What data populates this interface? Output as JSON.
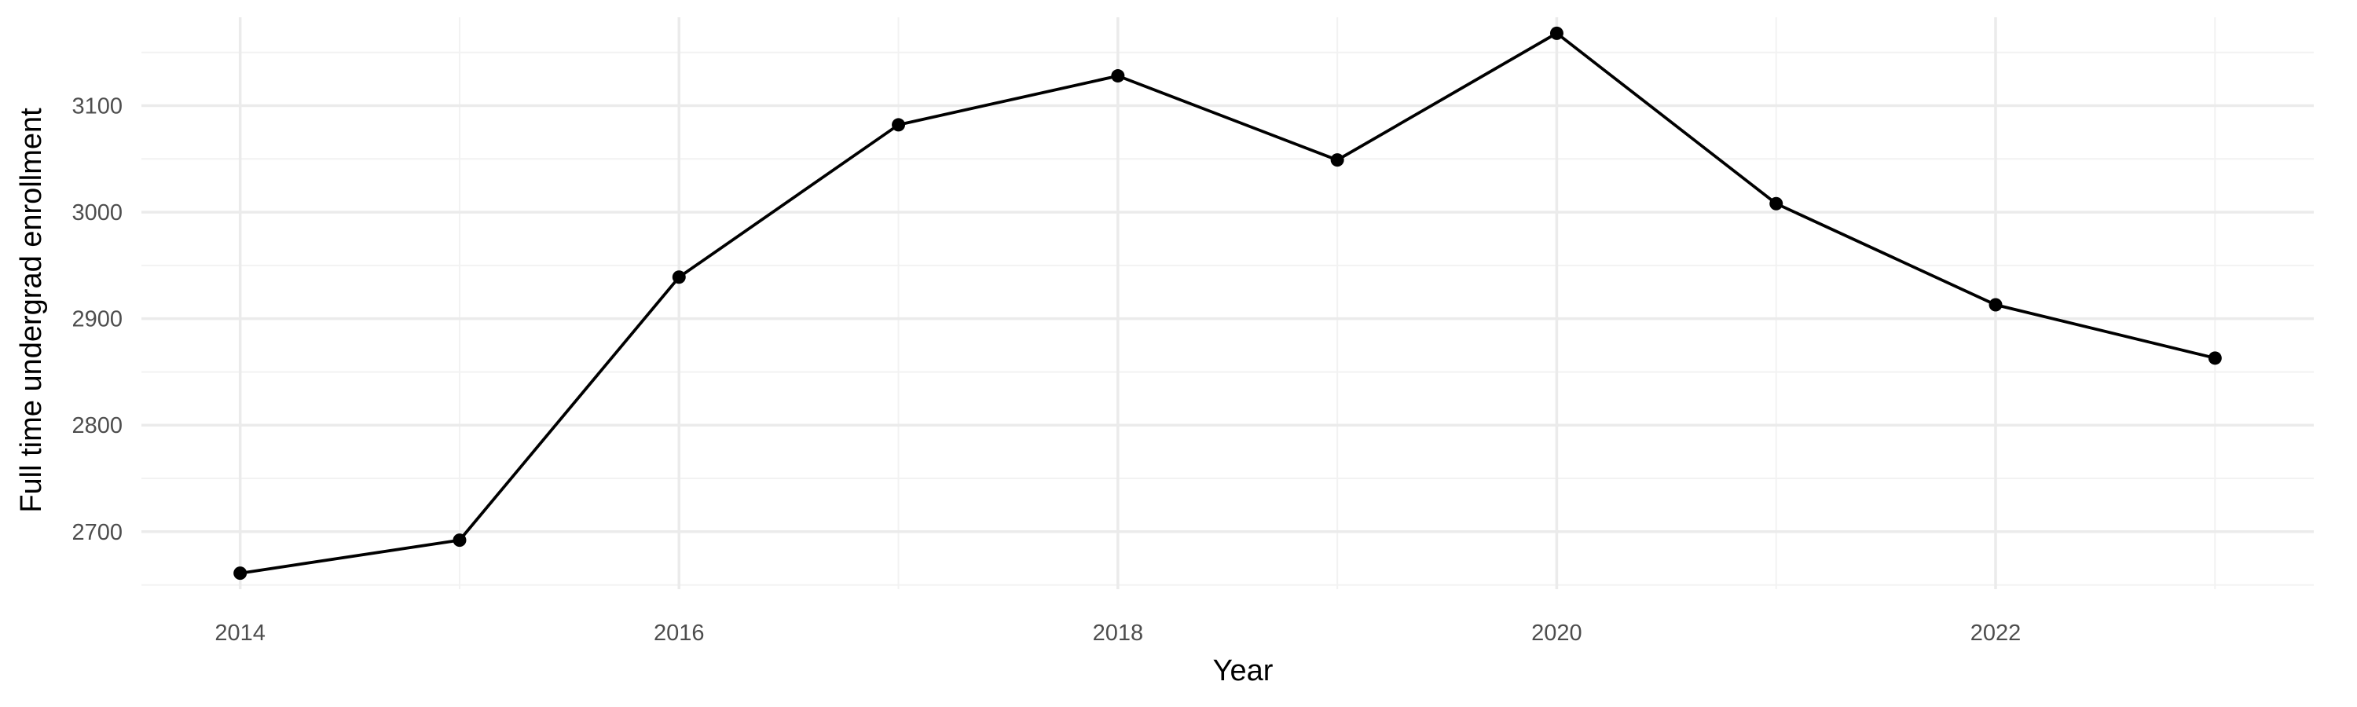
{
  "chart_data": {
    "type": "line",
    "title": "",
    "xlabel": "Year",
    "ylabel": "Full time undergrad enrollment",
    "x": [
      2014,
      2015,
      2016,
      2017,
      2018,
      2019,
      2020,
      2021,
      2022,
      2023
    ],
    "series": [
      {
        "values": [
          2661,
          2692,
          2939,
          3082,
          3128,
          3049,
          3168,
          3008,
          2913,
          2863
        ]
      }
    ],
    "x_ticks": [
      "2014",
      "2016",
      "2018",
      "2020",
      "2022"
    ],
    "y_ticks": [
      "2700",
      "2800",
      "2900",
      "3000",
      "3100"
    ],
    "xlim": [
      2013.55,
      2023.45
    ],
    "ylim": [
      2646,
      3183
    ],
    "grid": true,
    "legend": "none",
    "line_color": "#000000"
  }
}
